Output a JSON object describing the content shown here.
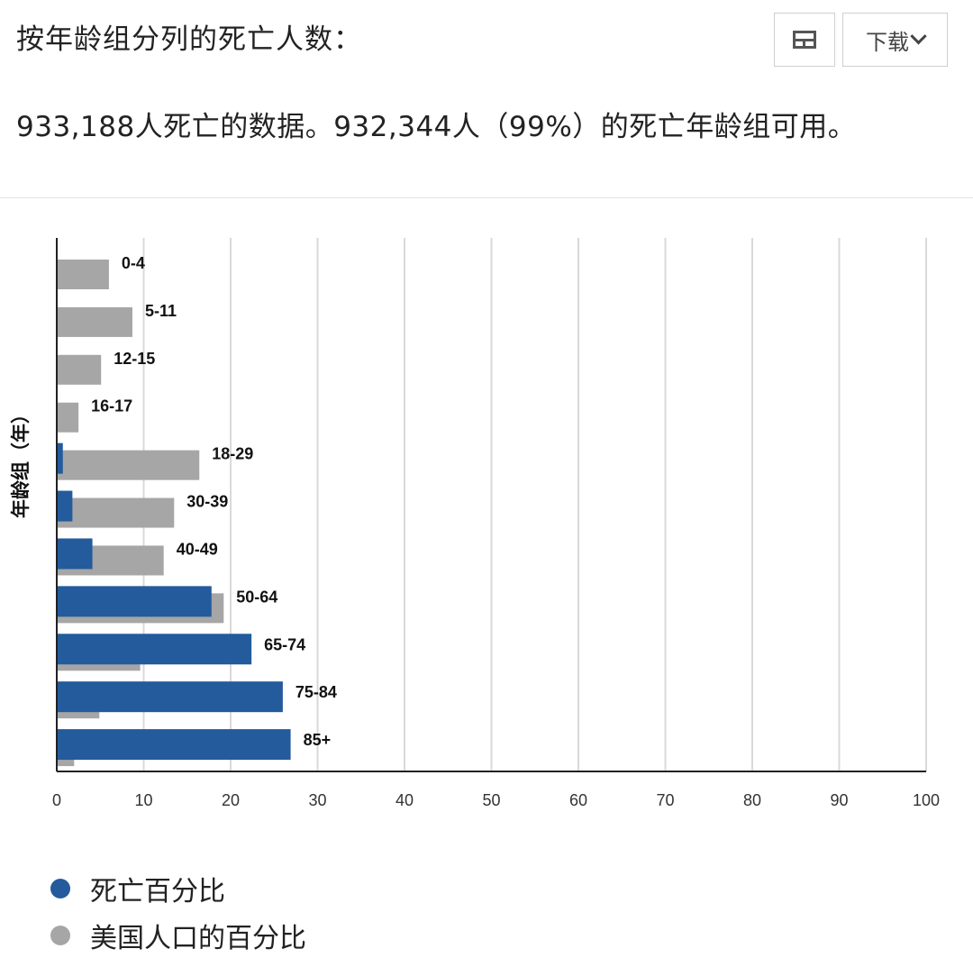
{
  "header": {
    "title": "按年龄组分列的死亡人数：",
    "download_label": "下载",
    "table_icon": "table-icon",
    "chevron_icon": "chevron-down-icon"
  },
  "summary": "933,188人死亡的数据。932,344人（99%）的死亡年龄组可用。",
  "chart_data": {
    "type": "bar",
    "orientation": "horizontal",
    "ylabel": "年龄组（年）",
    "xlim": [
      0,
      100
    ],
    "xticks": [
      "0",
      "10",
      "20",
      "30",
      "40",
      "50",
      "60",
      "70",
      "80",
      "90",
      "100"
    ],
    "grid": true,
    "legend_position": "bottom-left",
    "categories": [
      "0-4",
      "5-11",
      "12-15",
      "16-17",
      "18-29",
      "30-39",
      "40-49",
      "50-64",
      "65-74",
      "75-84",
      "85+"
    ],
    "series": [
      {
        "name": "死亡百分比",
        "color": "#235b9c",
        "values": [
          0.1,
          0.1,
          0.1,
          0.0,
          0.7,
          1.8,
          4.1,
          17.8,
          22.4,
          26.0,
          26.9
        ]
      },
      {
        "name": "美国人口的百分比",
        "color": "#a6a6a6",
        "values": [
          6.0,
          8.7,
          5.1,
          2.5,
          16.4,
          13.5,
          12.3,
          19.2,
          9.6,
          4.9,
          2.0
        ]
      }
    ]
  }
}
